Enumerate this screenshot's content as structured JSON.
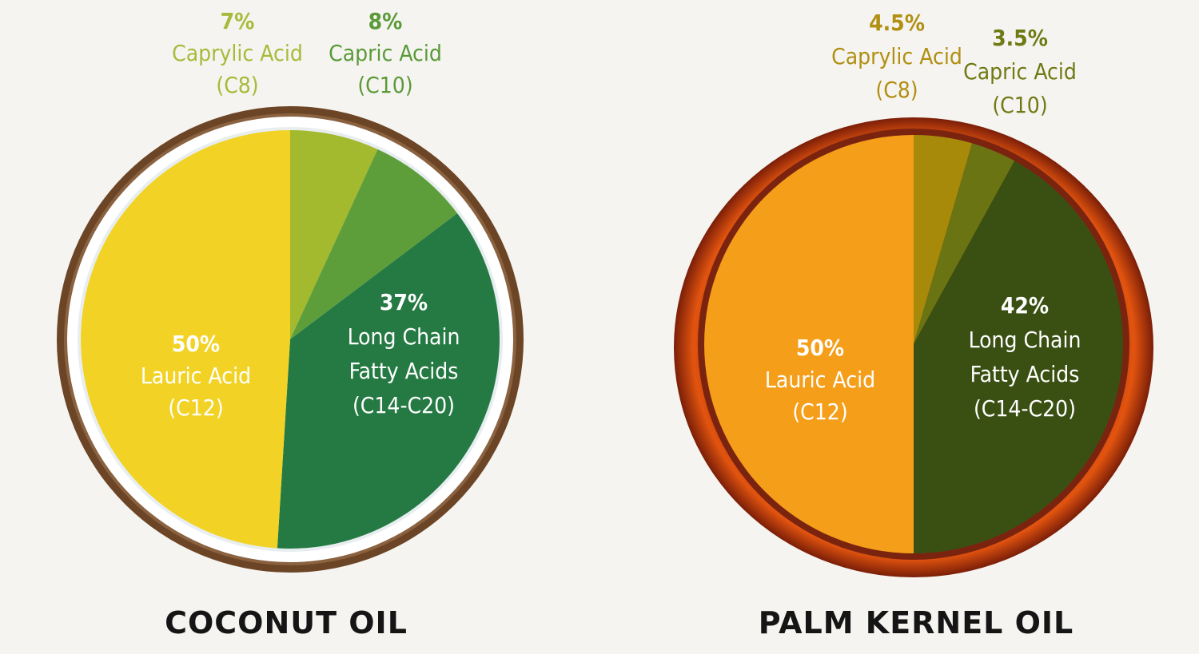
{
  "chart_data": [
    {
      "type": "pie",
      "title": "COCONUT OIL",
      "slices": [
        {
          "pct": "7%",
          "value": 7,
          "lines": [
            "Caprylic Acid",
            "(C8)"
          ],
          "color": "#a3b92e",
          "label_color": "#a6bb3a",
          "label_position": "outside"
        },
        {
          "pct": "8%",
          "value": 8,
          "lines": [
            "Capric Acid",
            "(C10)"
          ],
          "color": "#5e9e3a",
          "label_color": "#5a9a38",
          "label_position": "outside"
        },
        {
          "pct": "37%",
          "value": 37,
          "lines": [
            "Long Chain",
            "Fatty Acids",
            "(C14-C20)"
          ],
          "color": "#257a43",
          "label_color": "#ffffff",
          "label_position": "inside"
        },
        {
          "pct": "50%",
          "value": 50,
          "lines": [
            "Lauric Acid",
            "(C12)"
          ],
          "color": "#f2d325",
          "label_color": "#ffffff",
          "label_position": "inside"
        }
      ],
      "rim_color": "#6b4526",
      "inner_rim_color": "#ffffff"
    },
    {
      "type": "pie",
      "title": "PALM KERNEL OIL",
      "slices": [
        {
          "pct": "4.5%",
          "value": 4.5,
          "lines": [
            "Caprylic Acid",
            "(C8)"
          ],
          "color": "#a88a0b",
          "label_color": "#b08f12",
          "label_position": "outside"
        },
        {
          "pct": "3.5%",
          "value": 3.5,
          "lines": [
            "Capric Acid",
            "(C10)"
          ],
          "color": "#6b7412",
          "label_color": "#6e7a14",
          "label_position": "outside"
        },
        {
          "pct": "42%",
          "value": 42,
          "lines": [
            "Long Chain",
            "Fatty Acids",
            "(C14-C20)"
          ],
          "color": "#3a5012",
          "label_color": "#ffffff",
          "label_position": "inside"
        },
        {
          "pct": "50%",
          "value": 50,
          "lines": [
            "Lauric Acid",
            "(C12)"
          ],
          "color": "#f59e1a",
          "label_color": "#ffffff",
          "label_position": "inside"
        }
      ],
      "rim_color": "#d84c0e",
      "inner_rim_color": "#7a2410"
    }
  ]
}
